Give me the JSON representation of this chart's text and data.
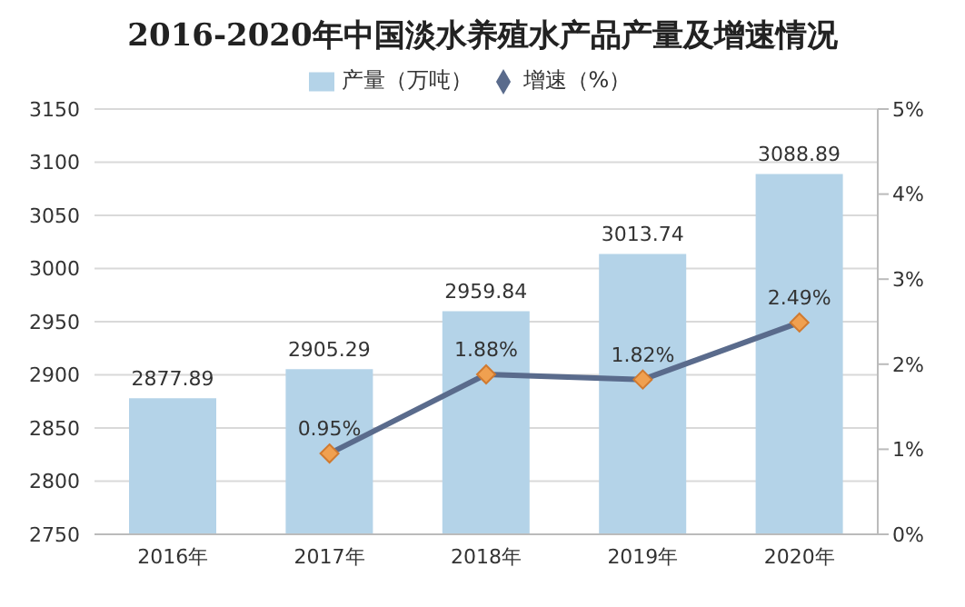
{
  "chart_data": {
    "type": "bar",
    "title": "2016-2020年中国淡水养殖水产品产量及增速情况",
    "categories": [
      "2016年",
      "2017年",
      "2018年",
      "2019年",
      "2020年"
    ],
    "series": [
      {
        "name": "产量（万吨）",
        "color": "#b4d3e8",
        "values": [
          2877.89,
          2905.29,
          2959.84,
          3013.74,
          3088.89
        ],
        "value_labels": [
          "2877.89",
          "2905.29",
          "2959.84",
          "3013.74",
          "3088.89"
        ]
      },
      {
        "name": "增速（%）",
        "type": "line",
        "axis": "y2",
        "color": "#5a6b8c",
        "marker": "diamond",
        "values": [
          null,
          0.95,
          1.88,
          1.82,
          2.49
        ],
        "value_labels": [
          null,
          "0.95%",
          "1.88%",
          "1.82%",
          "2.49%"
        ]
      }
    ],
    "ylim": [
      2750,
      3150
    ],
    "yticks": [
      2750,
      2800,
      2850,
      2900,
      2950,
      3000,
      3050,
      3100,
      3150
    ],
    "y2lim": [
      0,
      5
    ],
    "y2ticks": [
      {
        "value": 0,
        "label": "0%"
      },
      {
        "value": 1,
        "label": "1%"
      },
      {
        "value": 2,
        "label": "2%"
      },
      {
        "value": 3,
        "label": "3%"
      },
      {
        "value": 4,
        "label": "4%"
      },
      {
        "value": 5,
        "label": "5%"
      }
    ],
    "grid": "y",
    "legend": "top"
  }
}
